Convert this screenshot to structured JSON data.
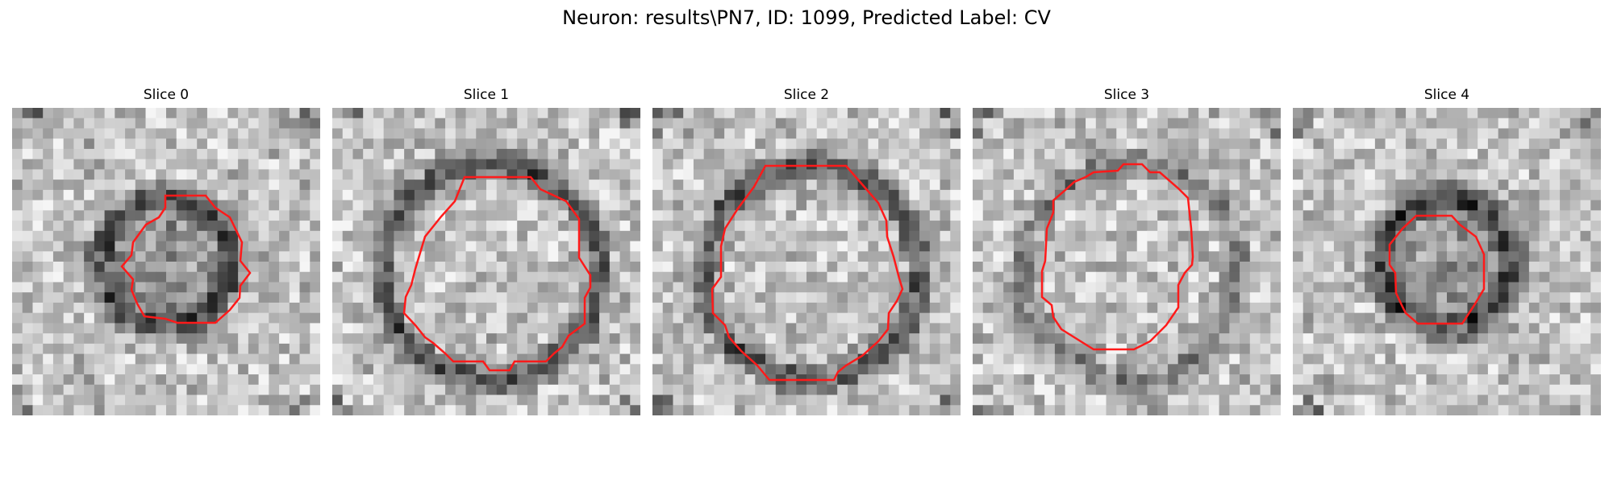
{
  "figure": {
    "title": "Neuron: results\\PN7, ID: 1099, Predicted Label: CV"
  },
  "panels": [
    {
      "title": "Slice 0",
      "pattern": "ring-dark-small",
      "seed": 11
    },
    {
      "title": "Slice 1",
      "pattern": "ring-large",
      "seed": 23
    },
    {
      "title": "Slice 2",
      "pattern": "ring-large",
      "seed": 37
    },
    {
      "title": "Slice 3",
      "pattern": "ring-large-faint",
      "seed": 41
    },
    {
      "title": "Slice 4",
      "pattern": "ring-dark-small",
      "seed": 53
    }
  ],
  "colors": {
    "contour": "#ff1a1a",
    "background": "#ffffff"
  }
}
